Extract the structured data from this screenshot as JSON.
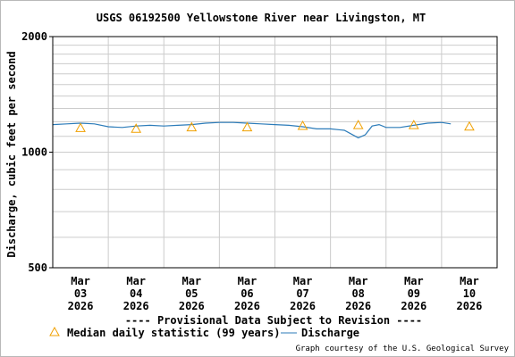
{
  "chart_data": {
    "type": "line",
    "title": "USGS 06192500 Yellowstone River near Livingston, MT",
    "ylabel": "Discharge, cubic feet per second",
    "xlabel": "",
    "y_scale": "log",
    "ylim": [
      500,
      2000
    ],
    "y_ticks": [
      "500",
      "1000",
      "2000"
    ],
    "x_ticks": [
      {
        "month": "Mar",
        "day": "03",
        "year": "2026"
      },
      {
        "month": "Mar",
        "day": "04",
        "year": "2026"
      },
      {
        "month": "Mar",
        "day": "05",
        "year": "2026"
      },
      {
        "month": "Mar",
        "day": "06",
        "year": "2026"
      },
      {
        "month": "Mar",
        "day": "07",
        "year": "2026"
      },
      {
        "month": "Mar",
        "day": "08",
        "year": "2026"
      },
      {
        "month": "Mar",
        "day": "09",
        "year": "2026"
      },
      {
        "month": "Mar",
        "day": "10",
        "year": "2026"
      }
    ],
    "grid": true,
    "series": [
      {
        "name": "Median daily statistic (99 years)",
        "marker": "triangle",
        "color": "#f0a000",
        "x": [
          "2026-03-03 12:00",
          "2026-03-04 12:00",
          "2026-03-05 12:00",
          "2026-03-06 12:00",
          "2026-03-07 12:00",
          "2026-03-08 12:00",
          "2026-03-09 12:00",
          "2026-03-10 12:00"
        ],
        "values": [
          1150,
          1145,
          1155,
          1155,
          1165,
          1170,
          1170,
          1160
        ]
      },
      {
        "name": "Discharge",
        "color": "#2b7bb9",
        "x": [
          "2026-03-03 00:00",
          "2026-03-03 06:00",
          "2026-03-03 12:00",
          "2026-03-03 18:00",
          "2026-03-04 00:00",
          "2026-03-04 06:00",
          "2026-03-04 12:00",
          "2026-03-04 18:00",
          "2026-03-05 00:00",
          "2026-03-05 06:00",
          "2026-03-05 12:00",
          "2026-03-05 18:00",
          "2026-03-06 00:00",
          "2026-03-06 06:00",
          "2026-03-06 12:00",
          "2026-03-06 18:00",
          "2026-03-07 00:00",
          "2026-03-07 06:00",
          "2026-03-07 12:00",
          "2026-03-07 18:00",
          "2026-03-08 00:00",
          "2026-03-08 06:00",
          "2026-03-08 09:00",
          "2026-03-08 12:00",
          "2026-03-08 15:00",
          "2026-03-08 18:00",
          "2026-03-08 21:00",
          "2026-03-09 00:00",
          "2026-03-09 06:00",
          "2026-03-09 12:00",
          "2026-03-09 18:00",
          "2026-03-10 00:00",
          "2026-03-10 04:00"
        ],
        "values": [
          1180,
          1185,
          1190,
          1185,
          1165,
          1160,
          1170,
          1175,
          1170,
          1175,
          1180,
          1190,
          1195,
          1195,
          1190,
          1185,
          1180,
          1175,
          1165,
          1150,
          1150,
          1140,
          1115,
          1090,
          1110,
          1170,
          1180,
          1160,
          1160,
          1175,
          1190,
          1195,
          1185
        ]
      }
    ]
  },
  "notice": "---- Provisional Data Subject to Revision ----",
  "legend": {
    "median": "Median daily statistic (99 years)",
    "discharge": "Discharge"
  },
  "credit": "Graph courtesy of the U.S. Geological Survey",
  "colors": {
    "median": "#f0a000",
    "discharge": "#2b7bb9",
    "notice": "#e00000",
    "grid": "#cccccc"
  }
}
